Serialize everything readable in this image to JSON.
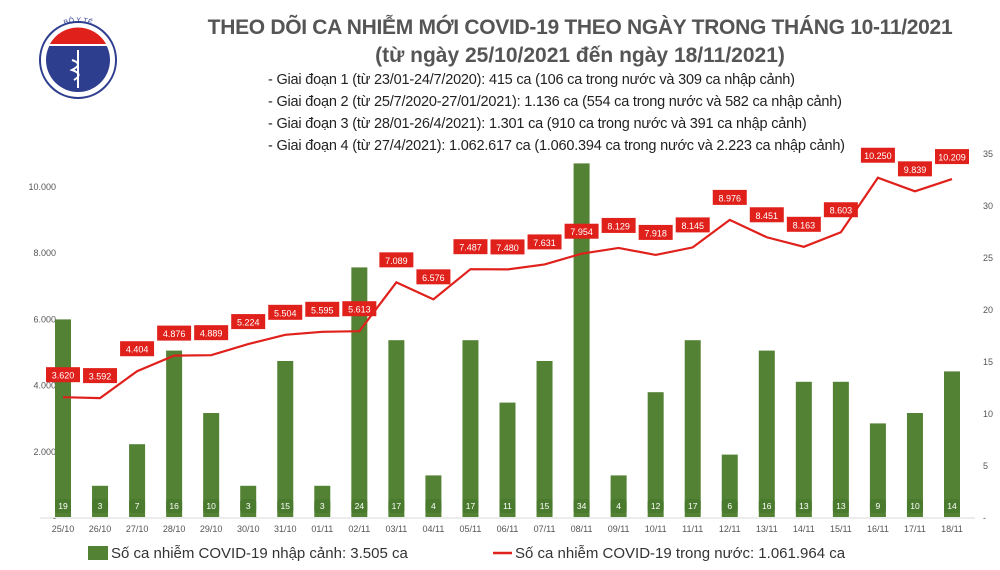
{
  "header": {
    "title": "THEO DÕI CA NHIỄM MỚI COVID-19 THEO NGÀY TRONG THÁNG 10-11/2021",
    "subtitle": "(từ ngày 25/10/2021 đến ngày 18/11/2021)",
    "stages": [
      "- Giai đoạn 1 (từ 23/01-24/7/2020): 415 ca (106 ca trong nước và 309 ca nhập cảnh)",
      "- Giai đoạn 2 (từ 25/7/2020-27/01/2021): 1.136 ca (554 ca trong nước và 582 ca nhập cảnh)",
      "- Giai đoạn 3 (từ 28/01-26/4/2021): 1.301 ca (910 ca trong nước và 391 ca nhập cảnh)",
      "- Giai đoạn 4 (từ 27/4/2021): 1.062.617 ca (1.060.394 ca trong nước và 2.223 ca nhập cảnh)"
    ],
    "logo": {
      "text_top": "BỘ Y TẾ",
      "text_bottom": "MINISTRY OF HEALTH"
    }
  },
  "chart_data": {
    "type": "bar+line",
    "categories": [
      "25/10",
      "26/10",
      "27/10",
      "28/10",
      "29/10",
      "30/10",
      "31/10",
      "01/11",
      "02/11",
      "03/11",
      "04/11",
      "05/11",
      "06/11",
      "07/11",
      "08/11",
      "09/11",
      "10/11",
      "11/11",
      "12/11",
      "13/11",
      "14/11",
      "15/11",
      "16/11",
      "17/11",
      "18/11"
    ],
    "series": [
      {
        "name": "Số ca nhiễm COVID-19 nhập cảnh: 3.505 ca",
        "type": "bar",
        "axis": "right",
        "color": "#548235",
        "values": [
          19,
          3,
          7,
          16,
          10,
          3,
          15,
          3,
          24,
          17,
          4,
          17,
          11,
          15,
          34,
          4,
          12,
          17,
          6,
          16,
          13,
          13,
          9,
          10,
          14
        ]
      },
      {
        "name": "Số ca nhiễm COVID-19 trong nước: 1.061.964 ca",
        "type": "line",
        "axis": "left",
        "color": "#e0201b",
        "values": [
          3620,
          3592,
          4404,
          4876,
          4889,
          5224,
          5504,
          5595,
          5613,
          7089,
          6576,
          7487,
          7480,
          7631,
          7954,
          8129,
          7918,
          8145,
          8976,
          8451,
          8163,
          8603,
          10250,
          9839,
          10209
        ]
      }
    ],
    "left_axis": {
      "ylim": [
        0,
        10000
      ],
      "ticks": [
        "-",
        "2.000",
        "4.000",
        "6.000",
        "8.000",
        "10.000"
      ]
    },
    "right_axis": {
      "ylim": [
        0,
        35
      ],
      "ticks": [
        "-",
        "5",
        "10",
        "15",
        "20",
        "25",
        "30",
        "35"
      ]
    },
    "grid": false,
    "legend": "bottom"
  }
}
